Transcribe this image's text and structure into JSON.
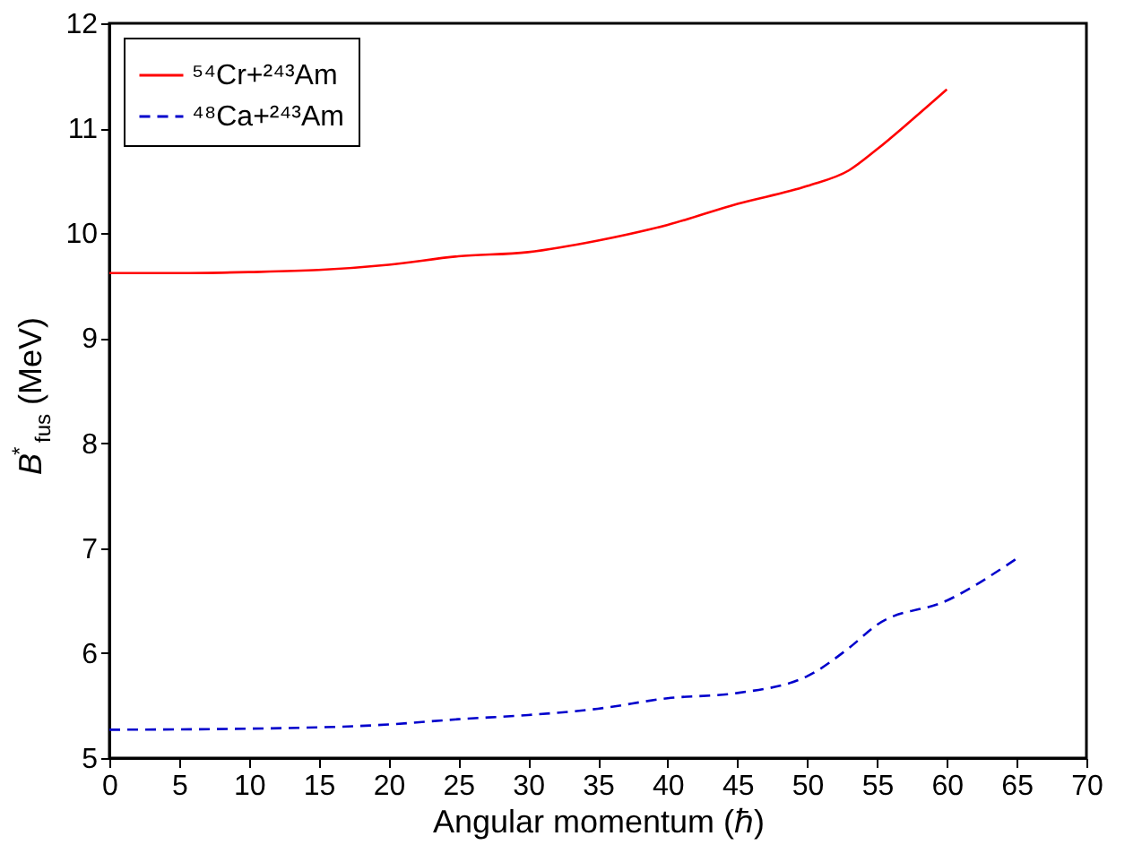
{
  "chart_data": {
    "type": "line",
    "xlabel": "Angular momentum (ℏ)",
    "ylabel": "B$^{*}$$_{fus}$(MeV)",
    "xlim": [
      0,
      70
    ],
    "xticks": [
      0,
      5,
      10,
      15,
      20,
      25,
      30,
      35,
      40,
      45,
      50,
      55,
      60,
      65,
      70
    ],
    "ylim": [
      5,
      12
    ],
    "yticks": [
      5,
      6,
      7,
      8,
      9,
      10,
      11,
      12
    ],
    "legend": "top left",
    "grid": false,
    "marker": "none",
    "series": [
      {
        "name": "⁵⁴Cr+²⁴³Am",
        "color": "#ff0000",
        "line_style": "solid",
        "x": [
          0,
          5,
          10,
          15,
          20,
          25,
          30,
          35,
          40,
          45,
          50,
          53,
          55,
          57.5,
          60
        ],
        "values": [
          9.62,
          9.62,
          9.63,
          9.65,
          9.7,
          9.78,
          9.82,
          9.93,
          10.08,
          10.28,
          10.45,
          10.6,
          10.8,
          11.08,
          11.37
        ]
      },
      {
        "name": "⁴⁸Ca+²⁴³Am",
        "color": "#0000cc",
        "line_style": "dashed",
        "x": [
          0,
          10,
          20,
          25,
          30,
          35,
          40,
          45,
          50,
          53,
          55,
          60,
          65
        ],
        "values": [
          5.27,
          5.28,
          5.32,
          5.37,
          5.41,
          5.47,
          5.57,
          5.62,
          5.78,
          6.05,
          6.27,
          6.5,
          6.9
        ]
      }
    ]
  }
}
